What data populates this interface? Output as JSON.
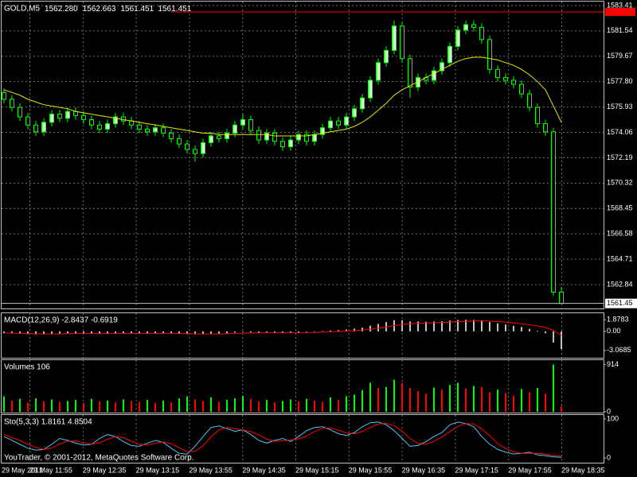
{
  "chart_data": [
    {
      "type": "candlestick",
      "title": "GOLD,M5",
      "header_values": [
        "1562.280",
        "1562.663",
        "1561.451",
        "1561.451"
      ],
      "up_color": "#ccffcc",
      "down_color": "#000000",
      "wick_color": "#00ff00",
      "ohlc": [
        [
          1577.0,
          1577.3,
          1576.2,
          1576.5
        ],
        [
          1576.5,
          1576.8,
          1575.6,
          1575.9
        ],
        [
          1575.9,
          1576.2,
          1574.9,
          1575.2
        ],
        [
          1575.2,
          1575.5,
          1574.3,
          1574.6
        ],
        [
          1574.6,
          1574.9,
          1573.8,
          1574.1
        ],
        [
          1574.1,
          1575.1,
          1573.8,
          1574.8
        ],
        [
          1574.8,
          1575.7,
          1574.5,
          1575.4
        ],
        [
          1575.4,
          1575.7,
          1574.8,
          1575.1
        ],
        [
          1575.1,
          1575.9,
          1574.8,
          1575.6
        ],
        [
          1575.6,
          1575.9,
          1575.0,
          1575.3
        ],
        [
          1575.3,
          1575.6,
          1574.7,
          1575.0
        ],
        [
          1575.0,
          1575.3,
          1574.3,
          1574.6
        ],
        [
          1574.6,
          1574.9,
          1574.0,
          1574.3
        ],
        [
          1574.3,
          1575.0,
          1574.0,
          1574.7
        ],
        [
          1574.7,
          1575.5,
          1574.4,
          1575.2
        ],
        [
          1575.2,
          1575.5,
          1574.6,
          1574.9
        ],
        [
          1574.9,
          1575.2,
          1574.3,
          1574.6
        ],
        [
          1574.6,
          1574.9,
          1574.0,
          1574.3
        ],
        [
          1574.3,
          1574.6,
          1573.8,
          1574.1
        ],
        [
          1574.1,
          1574.7,
          1573.8,
          1574.4
        ],
        [
          1574.4,
          1574.7,
          1573.7,
          1574.0
        ],
        [
          1574.0,
          1574.3,
          1573.3,
          1573.6
        ],
        [
          1573.6,
          1573.9,
          1572.9,
          1573.2
        ],
        [
          1573.2,
          1573.5,
          1572.5,
          1572.8
        ],
        [
          1572.8,
          1573.1,
          1571.9,
          1572.5
        ],
        [
          1572.5,
          1573.6,
          1572.2,
          1573.3
        ],
        [
          1573.3,
          1574.1,
          1573.0,
          1573.8
        ],
        [
          1573.8,
          1574.1,
          1573.3,
          1573.6
        ],
        [
          1573.6,
          1574.3,
          1573.3,
          1574.0
        ],
        [
          1574.0,
          1574.9,
          1573.7,
          1574.6
        ],
        [
          1574.6,
          1575.4,
          1574.3,
          1575.0
        ],
        [
          1575.0,
          1575.3,
          1573.9,
          1574.2
        ],
        [
          1574.2,
          1574.5,
          1573.2,
          1573.5
        ],
        [
          1573.5,
          1574.3,
          1573.2,
          1574.0
        ],
        [
          1574.0,
          1574.3,
          1573.1,
          1573.4
        ],
        [
          1573.4,
          1573.7,
          1572.7,
          1573.0
        ],
        [
          1573.0,
          1573.8,
          1572.7,
          1573.5
        ],
        [
          1573.5,
          1574.2,
          1573.2,
          1573.9
        ],
        [
          1573.9,
          1574.2,
          1573.1,
          1573.4
        ],
        [
          1573.4,
          1574.2,
          1573.1,
          1573.9
        ],
        [
          1573.9,
          1574.7,
          1573.6,
          1574.4
        ],
        [
          1574.4,
          1575.2,
          1574.1,
          1574.9
        ],
        [
          1574.9,
          1575.2,
          1574.3,
          1574.6
        ],
        [
          1574.6,
          1575.5,
          1574.3,
          1575.2
        ],
        [
          1575.2,
          1576.1,
          1574.9,
          1575.8
        ],
        [
          1575.8,
          1576.9,
          1575.5,
          1576.6
        ],
        [
          1576.6,
          1578.2,
          1576.3,
          1577.9
        ],
        [
          1577.9,
          1579.5,
          1577.6,
          1579.2
        ],
        [
          1579.2,
          1580.4,
          1578.9,
          1580.1
        ],
        [
          1580.1,
          1582.3,
          1579.8,
          1581.9
        ],
        [
          1581.9,
          1582.2,
          1579.2,
          1579.5
        ],
        [
          1579.5,
          1579.8,
          1576.6,
          1577.4
        ],
        [
          1577.4,
          1578.4,
          1577.1,
          1578.1
        ],
        [
          1578.1,
          1578.4,
          1577.6,
          1577.9
        ],
        [
          1577.9,
          1578.9,
          1577.6,
          1578.6
        ],
        [
          1578.6,
          1579.5,
          1578.3,
          1579.2
        ],
        [
          1579.2,
          1580.7,
          1578.9,
          1580.4
        ],
        [
          1580.4,
          1581.9,
          1580.1,
          1581.6
        ],
        [
          1581.6,
          1582.3,
          1581.3,
          1582.0
        ],
        [
          1582.0,
          1582.3,
          1581.5,
          1581.8
        ],
        [
          1581.8,
          1582.1,
          1580.6,
          1580.9
        ],
        [
          1580.9,
          1581.2,
          1578.4,
          1578.7
        ],
        [
          1578.7,
          1579.0,
          1577.8,
          1578.1
        ],
        [
          1578.1,
          1578.4,
          1577.6,
          1577.9
        ],
        [
          1577.9,
          1578.2,
          1577.3,
          1577.6
        ],
        [
          1577.6,
          1577.9,
          1576.6,
          1576.9
        ],
        [
          1576.9,
          1577.2,
          1575.6,
          1575.9
        ],
        [
          1575.9,
          1576.2,
          1574.4,
          1574.7
        ],
        [
          1574.7,
          1575.0,
          1573.8,
          1574.1
        ],
        [
          1574.1,
          1574.4,
          1562.0,
          1562.28
        ],
        [
          1562.28,
          1562.663,
          1561.451,
          1561.451
        ]
      ],
      "ma": {
        "color": "#e6e600",
        "values": [
          1577.2,
          1577.0,
          1576.8,
          1576.5,
          1576.3,
          1576.1,
          1576.0,
          1575.9,
          1575.8,
          1575.6,
          1575.5,
          1575.4,
          1575.3,
          1575.2,
          1575.1,
          1575.0,
          1574.9,
          1574.8,
          1574.7,
          1574.6,
          1574.5,
          1574.4,
          1574.3,
          1574.2,
          1574.1,
          1574.0,
          1574.0,
          1573.9,
          1573.9,
          1573.9,
          1573.9,
          1573.9,
          1573.9,
          1573.9,
          1573.8,
          1573.8,
          1573.8,
          1573.8,
          1573.8,
          1573.9,
          1574.0,
          1574.1,
          1574.2,
          1574.3,
          1574.5,
          1574.8,
          1575.2,
          1575.7,
          1576.2,
          1576.8,
          1577.2,
          1577.5,
          1577.8,
          1578.1,
          1578.4,
          1578.7,
          1579.0,
          1579.3,
          1579.5,
          1579.6,
          1579.6,
          1579.5,
          1579.4,
          1579.2,
          1579.0,
          1578.7,
          1578.3,
          1577.8,
          1577.2,
          1576.0,
          1574.8
        ]
      },
      "ask_line": 1582.94,
      "ask_color": "#ff0000",
      "last_label": "1561.45",
      "ylim": [
        1561.08,
        1583.7
      ],
      "yticks": [
        1583.41,
        1581.54,
        1579.67,
        {
          "value": 1577.8,
          "label": "1577.80"
        },
        1575.93,
        1574.06,
        1572.19,
        1570.32,
        1568.45,
        1566.58,
        1564.71,
        1562.84
      ],
      "grid": true
    },
    {
      "type": "macd",
      "title": "MACD(12,26,9) -2.8437 -0.6919",
      "color": "#c0c0c0",
      "signal_color": "#ff0000",
      "values": [
        -0.3,
        -0.35,
        -0.4,
        -0.45,
        -0.5,
        -0.45,
        -0.4,
        -0.35,
        -0.3,
        -0.3,
        -0.3,
        -0.35,
        -0.4,
        -0.35,
        -0.3,
        -0.3,
        -0.3,
        -0.35,
        -0.35,
        -0.3,
        -0.3,
        -0.35,
        -0.4,
        -0.45,
        -0.5,
        -0.45,
        -0.4,
        -0.35,
        -0.3,
        -0.2,
        -0.1,
        -0.15,
        -0.2,
        -0.15,
        -0.2,
        -0.25,
        -0.2,
        -0.15,
        -0.1,
        -0.05,
        0.05,
        0.15,
        0.2,
        0.3,
        0.45,
        0.6,
        0.9,
        1.2,
        1.5,
        1.8,
        1.8,
        1.6,
        1.6,
        1.55,
        1.6,
        1.65,
        1.75,
        1.85,
        1.88,
        1.85,
        1.75,
        1.5,
        1.3,
        1.1,
        0.9,
        0.7,
        0.4,
        0.1,
        -0.3,
        -1.8,
        -2.8437
      ],
      "signal": [
        -0.25,
        -0.28,
        -0.32,
        -0.36,
        -0.4,
        -0.42,
        -0.42,
        -0.4,
        -0.38,
        -0.36,
        -0.34,
        -0.34,
        -0.35,
        -0.35,
        -0.34,
        -0.33,
        -0.32,
        -0.33,
        -0.34,
        -0.33,
        -0.32,
        -0.33,
        -0.35,
        -0.38,
        -0.41,
        -0.42,
        -0.42,
        -0.4,
        -0.38,
        -0.34,
        -0.29,
        -0.26,
        -0.25,
        -0.23,
        -0.22,
        -0.23,
        -0.22,
        -0.21,
        -0.19,
        -0.16,
        -0.12,
        -0.07,
        -0.02,
        0.04,
        0.12,
        0.22,
        0.36,
        0.53,
        0.72,
        0.94,
        1.11,
        1.21,
        1.29,
        1.34,
        1.39,
        1.44,
        1.5,
        1.57,
        1.63,
        1.68,
        1.69,
        1.65,
        1.58,
        1.48,
        1.37,
        1.23,
        1.06,
        0.87,
        0.63,
        0.14,
        -0.6919
      ],
      "ylim": [
        -4.24,
        2.92
      ],
      "yticks": [
        1.8783,
        {
          "value": 0,
          "label": "0.00"
        },
        -3.0685
      ]
    },
    {
      "type": "volume",
      "title": "Volumes 106",
      "up_color": "#00ff00",
      "down_color": "#ff0000",
      "values": [
        300,
        220,
        250,
        180,
        260,
        200,
        240,
        190,
        210,
        230,
        170,
        250,
        200,
        220,
        180,
        240,
        210,
        190,
        230,
        170,
        220,
        180,
        260,
        300,
        240,
        210,
        280,
        190,
        230,
        260,
        310,
        250,
        200,
        230,
        180,
        210,
        240,
        200,
        250,
        220,
        190,
        280,
        230,
        300,
        330,
        420,
        560,
        460,
        480,
        620,
        560,
        460,
        400,
        350,
        470,
        430,
        520,
        560,
        450,
        500,
        480,
        380,
        430,
        360,
        310,
        440,
        380,
        460,
        350,
        914,
        106
      ],
      "ylim": [
        0,
        1000
      ],
      "yticks": [
        914,
        0
      ]
    },
    {
      "type": "line",
      "title": "Sto(5,3,3) 1.8161 4.8504",
      "series": [
        {
          "color": "#4fc3f7",
          "values": [
            55,
            45,
            35,
            25,
            20,
            22,
            35,
            50,
            45,
            38,
            33,
            35,
            50,
            60,
            55,
            42,
            32,
            30,
            38,
            45,
            40,
            25,
            12,
            10,
            30,
            55,
            78,
            82,
            75,
            68,
            72,
            60,
            45,
            38,
            45,
            50,
            42,
            55,
            70,
            78,
            80,
            72,
            62,
            58,
            65,
            80,
            90,
            92,
            85,
            70,
            50,
            30,
            32,
            42,
            55,
            65,
            85,
            92,
            88,
            80,
            55,
            35,
            22,
            15,
            10,
            12,
            15,
            8,
            6,
            3,
            1.8161
          ]
        },
        {
          "color": "#ff0000",
          "values": [
            60,
            52,
            45,
            35,
            27,
            22,
            26,
            36,
            43,
            44,
            39,
            35,
            39,
            48,
            55,
            52,
            43,
            35,
            33,
            38,
            41,
            37,
            26,
            16,
            17,
            32,
            54,
            72,
            78,
            75,
            72,
            67,
            59,
            48,
            43,
            44,
            46,
            49,
            56,
            68,
            76,
            77,
            71,
            64,
            62,
            68,
            78,
            87,
            89,
            82,
            68,
            50,
            37,
            35,
            43,
            54,
            68,
            81,
            88,
            87,
            74,
            57,
            37,
            24,
            16,
            12,
            12,
            12,
            10,
            6,
            4.8504
          ]
        }
      ],
      "ylim": [
        -12,
        110
      ],
      "yticks": [
        100,
        0
      ]
    }
  ],
  "time_labels": [
    "29 May 2012",
    "29 May 11:55",
    "29 May 12:35",
    "29 May 13:15",
    "29 May 13:55",
    "29 May 14:35",
    "29 May 15:15",
    "29 May 15:55",
    "29 May 16:35",
    "29 May 17:15",
    "29 May 17:55",
    "29 May 18:35"
  ],
  "watermark": "YouTrader, © 2001-2012, MetaQuotes Software Corp."
}
